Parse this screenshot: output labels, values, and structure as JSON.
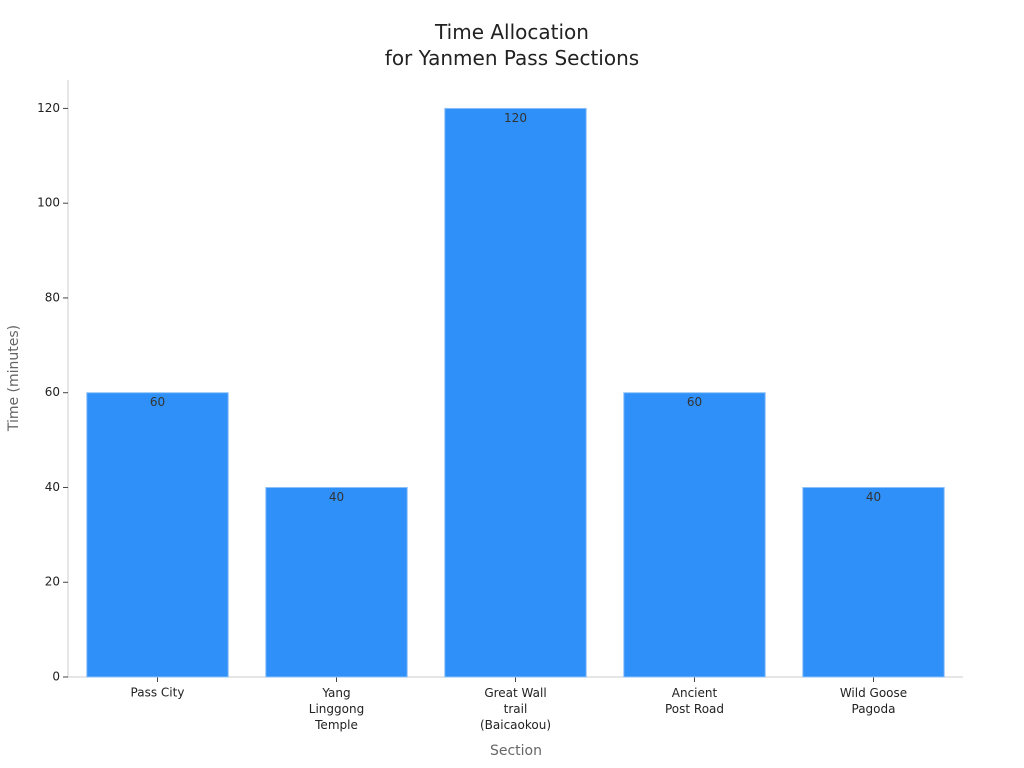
{
  "chart_data": {
    "type": "bar",
    "title": "Time Allocation\nfor Yanmen Pass Sections",
    "x_label": "Section",
    "y_label": "Time (minutes)",
    "categories": [
      "Pass City",
      "Yang\nLinggong\nTemple",
      "Great Wall\ntrail\n(Baicaokou)",
      "Ancient\nPost Road",
      "Wild Goose\nPagoda"
    ],
    "values": [
      60,
      40,
      120,
      60,
      40
    ],
    "color": "#2e90f8",
    "ylim": [
      0,
      126
    ],
    "yticks": [
      0,
      20,
      40,
      60,
      80,
      100,
      120
    ],
    "grid": false
  }
}
